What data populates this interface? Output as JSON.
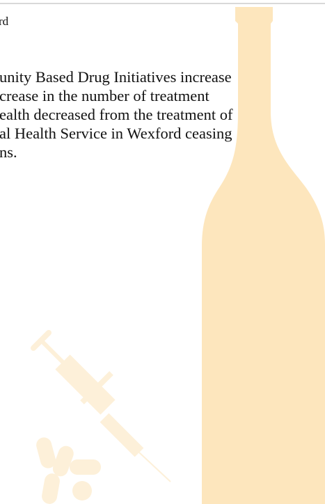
{
  "header": {
    "fragment": "rd"
  },
  "body": {
    "lines": [
      "unity Based Drug Initiatives increase",
      "crease in the number of treatment",
      "ealth decreased from the treatment of",
      "al Health Service in Wexford ceasing",
      "ns."
    ]
  }
}
